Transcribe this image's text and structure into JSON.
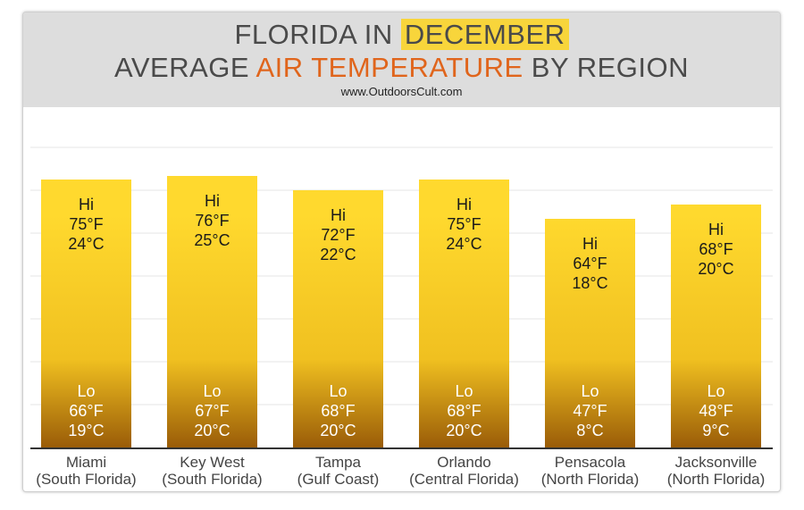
{
  "title": {
    "line1_prefix": "FLORIDA IN ",
    "line1_highlight": "DECEMBER",
    "line2_prefix": "AVERAGE ",
    "line2_accent": "AIR TEMPERATURE",
    "line2_suffix": " BY REGION",
    "website": "www.OutdoorsCult.com"
  },
  "colors": {
    "bar_top": "#ffd92e",
    "bar_mid": "#f0c020",
    "bar_bottom": "#9a5c08",
    "highlight": "#f8d53b",
    "accent": "#e0651c",
    "header_bg": "#dddddd",
    "grid": "#e6e6e6"
  },
  "chart_data": {
    "type": "bar",
    "categories": [
      {
        "name": "Miami",
        "region": "(South Florida)"
      },
      {
        "name": "Key West",
        "region": "(South Florida)"
      },
      {
        "name": "Tampa",
        "region": "(Gulf Coast)"
      },
      {
        "name": "Orlando",
        "region": "(Central Florida)"
      },
      {
        "name": "Pensacola",
        "region": "(North Florida)"
      },
      {
        "name": "Jacksonville",
        "region": "(North Florida)"
      }
    ],
    "hi_f": [
      75,
      76,
      72,
      75,
      64,
      68
    ],
    "hi_c": [
      24,
      25,
      22,
      24,
      18,
      20
    ],
    "lo_f": [
      66,
      67,
      68,
      68,
      47,
      48
    ],
    "lo_c": [
      19,
      20,
      20,
      20,
      8,
      9
    ],
    "hi_texts": [
      {
        "label": "Hi",
        "f": "75°F",
        "c": "24°C"
      },
      {
        "label": "Hi",
        "f": "76°F",
        "c": "25°C"
      },
      {
        "label": "Hi",
        "f": "72°F",
        "c": "22°C"
      },
      {
        "label": "Hi",
        "f": "75°F",
        "c": "24°C"
      },
      {
        "label": "Hi",
        "f": "64°F",
        "c": "18°C"
      },
      {
        "label": "Hi",
        "f": "68°F",
        "c": "20°C"
      }
    ],
    "lo_texts": [
      {
        "label": "Lo",
        "f": "66°F",
        "c": "19°C"
      },
      {
        "label": "Lo",
        "f": "67°F",
        "c": "20°C"
      },
      {
        "label": "Lo",
        "f": "68°F",
        "c": "20°C"
      },
      {
        "label": "Lo",
        "f": "68°F",
        "c": "20°C"
      },
      {
        "label": "Lo",
        "f": "47°F",
        "c": "8°C"
      },
      {
        "label": "Lo",
        "f": "48°F",
        "c": "9°C"
      }
    ],
    "ylim": [
      0,
      100
    ],
    "grid": true,
    "legend": "none"
  }
}
